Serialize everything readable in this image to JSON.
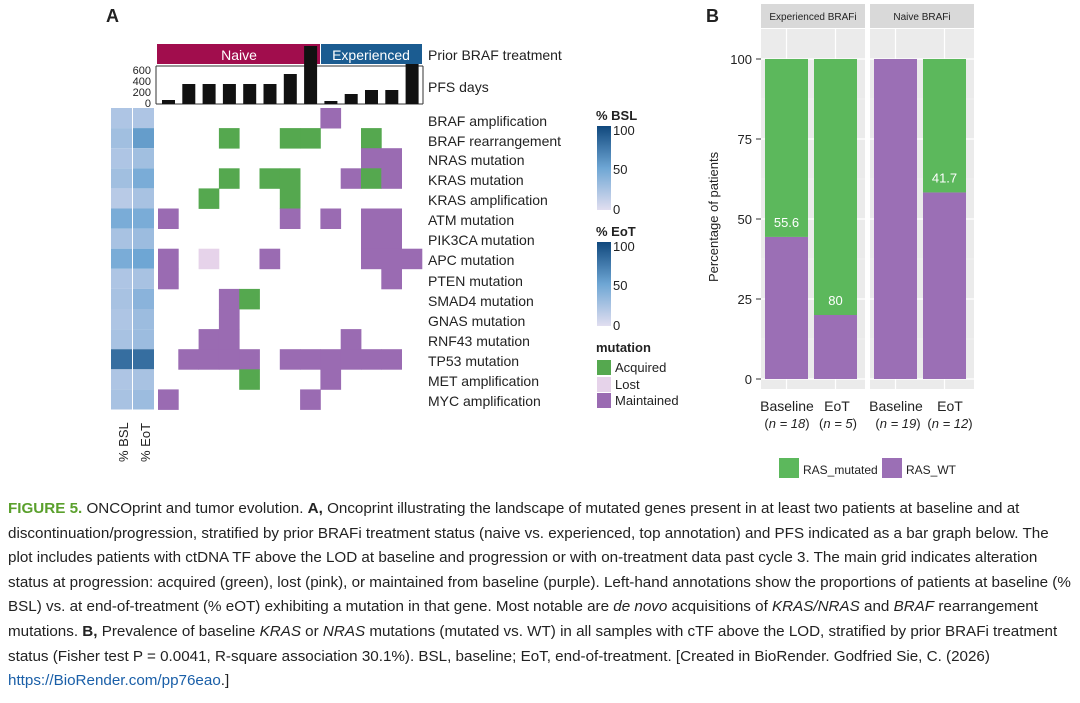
{
  "panel_a": {
    "letter": "A",
    "annotation_naive": "Naive",
    "annotation_experienced": "Experienced",
    "annotation_label": "Prior BRAF treatment",
    "pfs_label": "PFS days",
    "pfs_ticks": [
      "600",
      "400",
      "200",
      "0"
    ],
    "left_col_labels": [
      "% BSL",
      "% EoT"
    ],
    "genes": [
      "BRAF amplification",
      "BRAF rearrangement",
      "NRAS mutation",
      "KRAS mutation",
      "KRAS amplification",
      "ATM mutation",
      "PIK3CA mutation",
      "APC mutation",
      "PTEN mutation",
      "SMAD4 mutation",
      "GNAS mutation",
      "RNF43 mutation",
      "TP53 mutation",
      "MET amplification",
      "MYC amplification"
    ],
    "legend_bsl_title": "% BSL",
    "legend_eot_title": "% EoT",
    "legend_ticks": [
      "100",
      "50",
      "0"
    ],
    "legend_mutation_title": "mutation",
    "legend_mutation_items": [
      "Acquired",
      "Lost",
      "Maintained"
    ],
    "colors": {
      "naive": "#a10d4d",
      "experienced": "#1b5c91",
      "acquired": "#55a84f",
      "lost": "#e6d3ea",
      "maintained": "#9a6bb2"
    }
  },
  "panel_b": {
    "letter": "B",
    "facet_labels": [
      "Experienced BRAFi",
      "Naive BRAFi"
    ],
    "ylabel": "Percentage of patients",
    "y_ticks": [
      "100",
      "75",
      "50",
      "25",
      "0"
    ],
    "x_labels": [
      "Baseline",
      "EoT",
      "Baseline",
      "EoT"
    ],
    "n_labels": [
      "n = 18",
      "n = 5",
      "n = 19",
      "n = 12"
    ],
    "legend": [
      "RAS_mutated",
      "RAS_WT"
    ],
    "colors": {
      "mutated": "#5cb85c",
      "wt": "#9b6fb5",
      "strip": "#d9d9d9",
      "panel": "#ebebeb"
    }
  },
  "chart_data": {
    "type": "bar",
    "facets": [
      "Experienced BRAFi",
      "Experienced BRAFi",
      "Naive BRAFi",
      "Naive BRAFi"
    ],
    "categories": [
      "Baseline",
      "EoT",
      "Baseline",
      "EoT"
    ],
    "series": [
      {
        "name": "RAS_mutated",
        "values": [
          55.6,
          80,
          0,
          41.7
        ]
      },
      {
        "name": "RAS_WT",
        "values": [
          44.4,
          20,
          100,
          58.3
        ]
      }
    ],
    "data_labels": [
      "55.6",
      "80",
      "",
      "41.7"
    ],
    "stacked": true,
    "ylabel": "Percentage of patients",
    "ylim": [
      0,
      100
    ],
    "grid": true,
    "legend_position": "bottom"
  },
  "caption": {
    "fig_label": "FIGURE 5.",
    "t1": " ONCOprint and tumor evolution. ",
    "a": "A,",
    "t2": " Oncoprint illustrating the landscape of mutated genes present in at least two patients at baseline and at discontinuation/progression, stratified by prior BRAFi treatment status (naive vs. experienced, top annotation) and PFS indicated as a bar graph below. The plot includes patients with ctDNA TF above the LOD at baseline and progression or with on-treatment data past cycle 3. The main grid indicates alteration status at progression: acquired (green), lost (pink), or maintained from baseline (purple). Left-hand annotations show the proportions of patients at baseline (% BSL) vs. at end-of-treatment (% eOT) exhibiting a mutation in that gene. Most notable are ",
    "i1": "de novo",
    "t3": " acquisitions of ",
    "i2": "KRAS/NRAS",
    "t4": " and ",
    "i3": "BRAF",
    "t5": " rearrangement mutations. ",
    "b": "B,",
    "t6": " Prevalence of baseline ",
    "i4": "KRAS",
    "t7": " or ",
    "i5": "NRAS",
    "t8": " mutations (mutated vs. WT) in all samples with cTF above the LOD, stratified by prior BRAFi treatment status (Fisher test P = 0.0041, R-square association 30.1%). BSL, baseline; EoT, end-of-treatment. [Created in BioRender. Godfried Sie, C. (2026) ",
    "link": "https://BioRender.com/pp76eao",
    "t9": ".]"
  }
}
